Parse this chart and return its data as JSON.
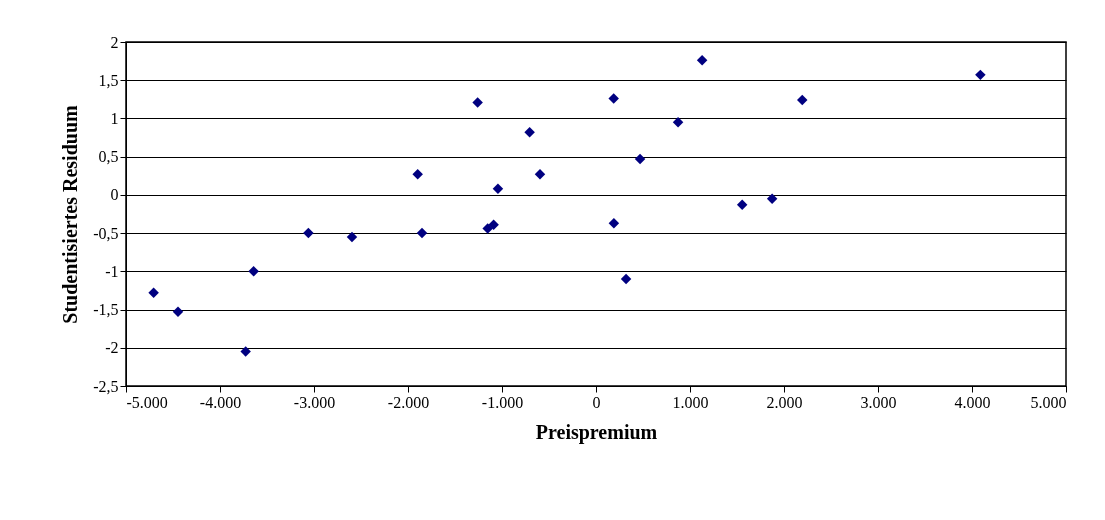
{
  "chart_data": {
    "type": "scatter",
    "xlabel": "Preispremium",
    "ylabel": "Studentisiertes Residuum",
    "x": [
      -4706,
      -4447,
      -3727,
      -3642,
      -3060,
      -2596,
      -1897,
      -1851,
      -1259,
      -1152,
      -1089,
      -1043,
      -706,
      -596,
      188,
      190,
      320,
      469,
      873,
      1129,
      1555,
      1874,
      2194,
      4089
    ],
    "values": [
      -1.28,
      -1.53,
      -2.05,
      -1.0,
      -0.5,
      -0.55,
      0.27,
      -0.5,
      1.21,
      -0.44,
      -0.39,
      0.08,
      0.82,
      0.27,
      1.26,
      -0.37,
      -1.1,
      0.47,
      0.95,
      1.76,
      -0.13,
      -0.05,
      1.24,
      1.57
    ],
    "color": "#000080",
    "marker": "diamond",
    "grid": "y",
    "xlim": [
      -5000,
      5000
    ],
    "xticks": [
      {
        "value": -5000,
        "label": "-5.000"
      },
      {
        "value": -4000,
        "label": "-4.000"
      },
      {
        "value": -3000,
        "label": "-3.000"
      },
      {
        "value": -2000,
        "label": "-2.000"
      },
      {
        "value": -1000,
        "label": "-1.000"
      },
      0,
      {
        "value": 1000,
        "label": "1.000"
      },
      {
        "value": 2000,
        "label": "2.000"
      },
      {
        "value": 3000,
        "label": "3.000"
      },
      {
        "value": 4000,
        "label": "4.000"
      },
      {
        "value": 5000,
        "label": "5.000"
      }
    ],
    "ylim": [
      -2.5,
      2
    ],
    "yticks": [
      {
        "value": -2.5,
        "label": "-2,5"
      },
      -2,
      {
        "value": -1.5,
        "label": "-1,5"
      },
      -1,
      {
        "value": -0.5,
        "label": "-0,5"
      },
      0,
      {
        "value": 0.5,
        "label": "0,5"
      },
      1,
      {
        "value": 1.5,
        "label": "1,5"
      },
      2
    ]
  }
}
